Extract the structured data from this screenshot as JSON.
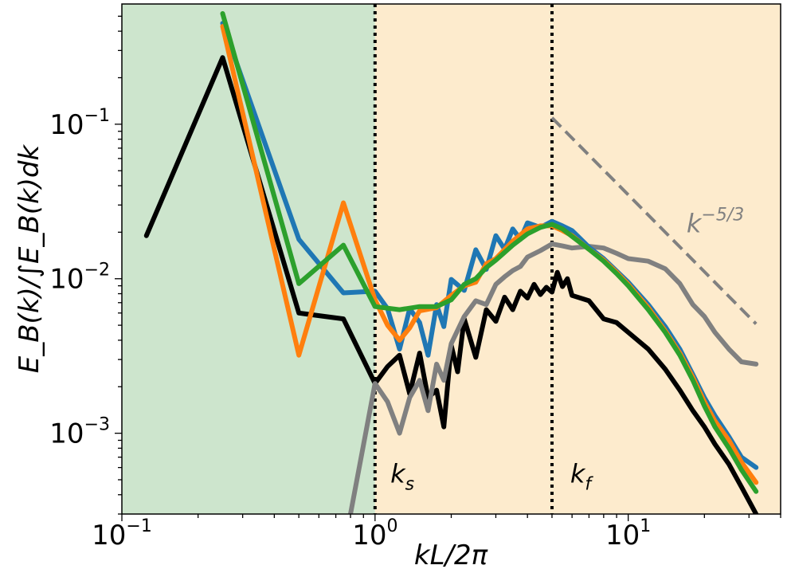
{
  "chart_data": {
    "type": "line",
    "title": "",
    "xlabel": "kL/2π",
    "ylabel": "E_B(k)/∫E_B(k)dk",
    "x_scale": "log",
    "y_scale": "log",
    "xlim": [
      0.1,
      40
    ],
    "ylim": [
      0.0003,
      0.6
    ],
    "x_ticks": [
      {
        "value": 0.1,
        "base": "10",
        "exp": "−1"
      },
      {
        "value": 1,
        "base": "10",
        "exp": "0"
      },
      {
        "value": 10,
        "base": "10",
        "exp": "1"
      }
    ],
    "y_ticks": [
      {
        "value": 0.001,
        "base": "10",
        "exp": "−3"
      },
      {
        "value": 0.01,
        "base": "10",
        "exp": "−2"
      },
      {
        "value": 0.1,
        "base": "10",
        "exp": "−1"
      }
    ],
    "regions": [
      {
        "x0": 0.1,
        "x1": 1,
        "color": "#cde5cd"
      },
      {
        "x0": 1,
        "x1": 40,
        "color": "#fdebcd"
      }
    ],
    "vlines": [
      {
        "x": 1,
        "label": "k",
        "sub": "s",
        "label_x": 1.15,
        "label_y": 0.00048
      },
      {
        "x": 5,
        "label": "k",
        "sub": "f",
        "label_x": 5.9,
        "label_y": 0.00048
      }
    ],
    "reference_line": {
      "x": [
        5,
        32
      ],
      "y": [
        0.11,
        0.0051
      ],
      "color": "#808080",
      "label": "k",
      "sup": "−5/3",
      "label_x": 17,
      "label_y": 0.02
    },
    "series": [
      {
        "color": "#000000",
        "x": [
          0.125,
          0.25,
          0.5,
          0.75,
          1.0,
          1.12,
          1.25,
          1.37,
          1.5,
          1.62,
          1.75,
          1.87,
          2.0,
          2.12,
          2.25,
          2.5,
          2.75,
          3.0,
          3.25,
          3.5,
          3.75,
          4.0,
          4.25,
          4.5,
          4.75,
          5.0,
          5.25,
          5.5,
          5.75,
          6,
          7,
          8,
          9,
          10,
          12,
          14,
          16,
          18,
          20,
          22,
          25,
          28,
          32
        ],
        "y": [
          0.019,
          0.27,
          0.006,
          0.0055,
          0.0021,
          0.0027,
          0.0032,
          0.0018,
          0.0033,
          0.0017,
          0.0019,
          0.0011,
          0.0037,
          0.0025,
          0.0055,
          0.0031,
          0.0063,
          0.0053,
          0.0076,
          0.0063,
          0.0083,
          0.0075,
          0.0092,
          0.0079,
          0.0088,
          0.0082,
          0.011,
          0.0089,
          0.01,
          0.0078,
          0.0072,
          0.0055,
          0.0052,
          0.0045,
          0.0035,
          0.0026,
          0.0019,
          0.0014,
          0.0011,
          0.00085,
          0.00063,
          0.00045,
          0.0003
        ]
      },
      {
        "color": "#808080",
        "x": [
          0.8,
          1.0,
          1.12,
          1.25,
          1.37,
          1.5,
          1.62,
          1.75,
          1.87,
          2.0,
          2.25,
          2.5,
          2.75,
          3.0,
          3.25,
          3.5,
          3.75,
          4.0,
          4.5,
          5.0,
          5.5,
          6,
          7,
          8,
          9,
          10,
          12,
          14,
          16,
          18,
          20,
          22,
          25,
          28,
          32
        ],
        "y": [
          0.0003,
          0.0021,
          0.0016,
          0.001,
          0.0017,
          0.0022,
          0.0014,
          0.0028,
          0.0022,
          0.0038,
          0.0057,
          0.0072,
          0.0068,
          0.0092,
          0.0103,
          0.0113,
          0.012,
          0.0138,
          0.0152,
          0.0168,
          0.0163,
          0.0158,
          0.0162,
          0.0158,
          0.0146,
          0.0135,
          0.013,
          0.0116,
          0.0093,
          0.0068,
          0.0057,
          0.0045,
          0.0035,
          0.0029,
          0.0028
        ]
      },
      {
        "color": "#1f77b4",
        "x": [
          0.25,
          0.5,
          0.75,
          1.0,
          1.12,
          1.25,
          1.37,
          1.5,
          1.62,
          1.75,
          1.87,
          2.0,
          2.25,
          2.5,
          2.75,
          3.0,
          3.25,
          3.5,
          3.75,
          4.0,
          4.5,
          5.0,
          5.5,
          6,
          7,
          8,
          9,
          10,
          12,
          14,
          16,
          18,
          20,
          22,
          25,
          28,
          32
        ],
        "y": [
          0.45,
          0.018,
          0.0081,
          0.0083,
          0.0064,
          0.0035,
          0.0064,
          0.0052,
          0.0032,
          0.0068,
          0.0049,
          0.0099,
          0.0084,
          0.0154,
          0.0115,
          0.019,
          0.0155,
          0.021,
          0.018,
          0.023,
          0.0215,
          0.0235,
          0.022,
          0.0205,
          0.016,
          0.0135,
          0.0112,
          0.0095,
          0.0068,
          0.0049,
          0.0035,
          0.0024,
          0.0017,
          0.0013,
          0.00095,
          0.0007,
          0.0006
        ]
      },
      {
        "color": "#ff7f0e",
        "x": [
          0.25,
          0.5,
          0.75,
          1.0,
          1.12,
          1.25,
          1.37,
          1.5,
          1.75,
          2.0,
          2.25,
          2.5,
          2.75,
          3.0,
          3.5,
          4.0,
          4.5,
          5.0,
          5.5,
          6,
          7,
          8,
          9,
          10,
          12,
          14,
          16,
          18,
          20,
          22,
          25,
          28,
          32
        ],
        "y": [
          0.43,
          0.0032,
          0.031,
          0.0073,
          0.005,
          0.004,
          0.0048,
          0.0062,
          0.0065,
          0.0078,
          0.009,
          0.0095,
          0.0125,
          0.0135,
          0.0175,
          0.021,
          0.022,
          0.022,
          0.0205,
          0.019,
          0.0155,
          0.0132,
          0.011,
          0.0092,
          0.0065,
          0.0046,
          0.0033,
          0.0023,
          0.0016,
          0.0012,
          0.0009,
          0.00065,
          0.00048
        ]
      },
      {
        "color": "#2ca02c",
        "x": [
          0.25,
          0.5,
          0.75,
          1.0,
          1.25,
          1.5,
          1.75,
          2.0,
          2.25,
          2.5,
          2.75,
          3.0,
          3.5,
          4.0,
          4.5,
          5.0,
          5.5,
          6,
          7,
          8,
          9,
          10,
          12,
          14,
          16,
          18,
          20,
          22,
          25,
          28,
          32
        ],
        "y": [
          0.52,
          0.0093,
          0.0165,
          0.0066,
          0.0063,
          0.0066,
          0.0066,
          0.0073,
          0.0092,
          0.01,
          0.0118,
          0.0132,
          0.0165,
          0.0195,
          0.0215,
          0.0225,
          0.021,
          0.0188,
          0.0155,
          0.013,
          0.0108,
          0.009,
          0.0063,
          0.0045,
          0.0032,
          0.0022,
          0.0015,
          0.0011,
          0.0008,
          0.00058,
          0.00042
        ]
      }
    ]
  }
}
